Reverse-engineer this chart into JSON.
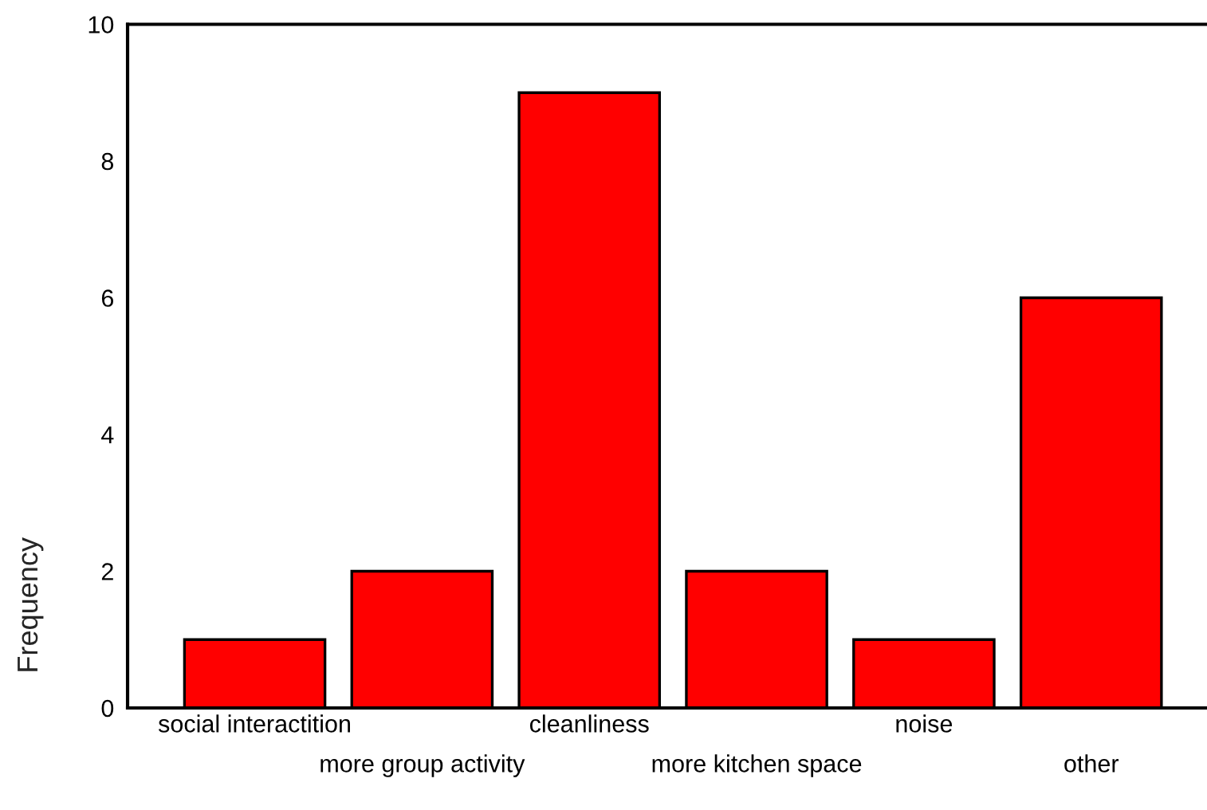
{
  "chart_data": {
    "type": "bar",
    "ylabel": "Frequency",
    "categories": [
      "social interactition",
      "more group activity",
      "cleanliness",
      "more kitchen space",
      "noise",
      "other"
    ],
    "values": [
      1,
      2,
      9,
      2,
      1,
      6
    ],
    "color": "#ff0000",
    "ylim": [
      0,
      10
    ],
    "yticks": [
      0,
      2,
      4,
      6,
      8,
      10
    ],
    "grid": false,
    "legend": false
  }
}
